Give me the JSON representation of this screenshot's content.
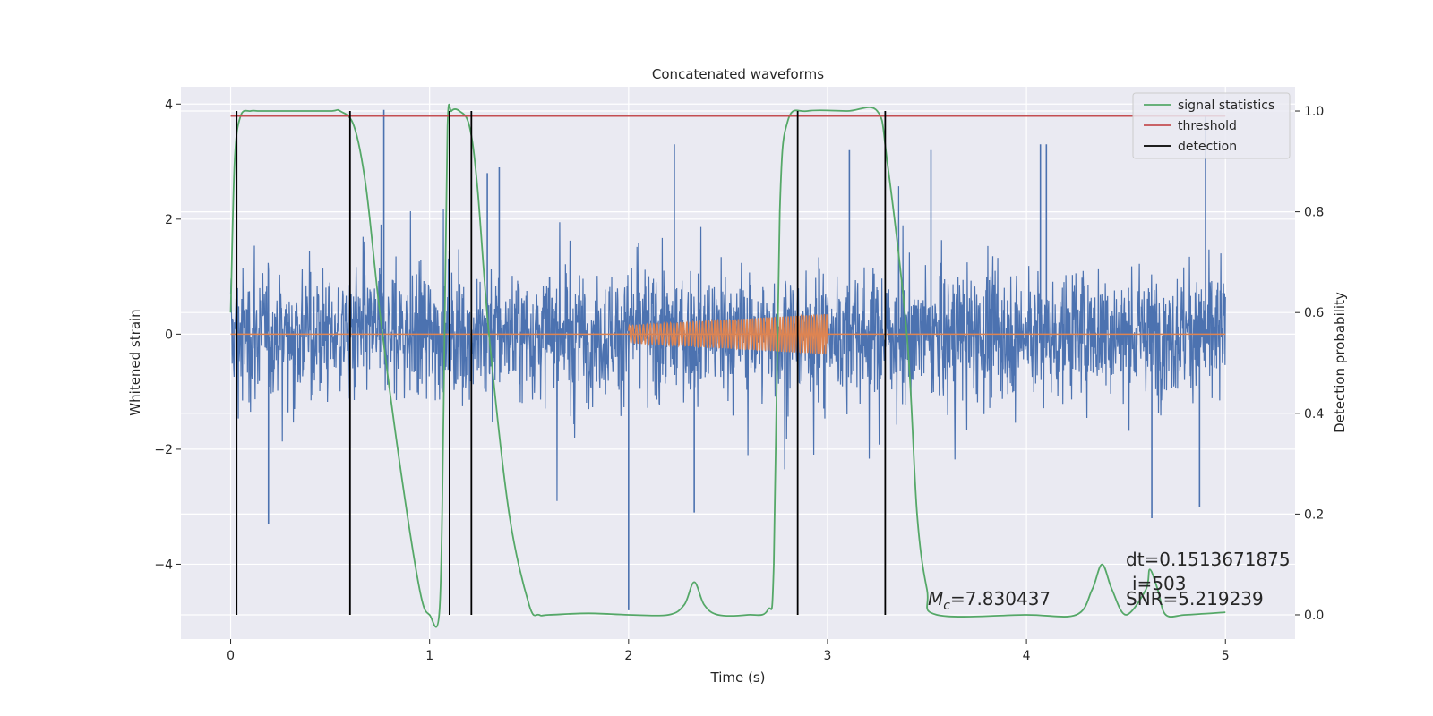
{
  "chart_data": {
    "type": "line",
    "title": "Concatenated waveforms",
    "xlabel": "Time (s)",
    "ylabel": "Whitened strain",
    "y2label": "Detection probability",
    "xlim": [
      -0.25,
      5.35
    ],
    "ylim": [
      -5.3,
      4.3
    ],
    "y2lim": [
      -0.048,
      1.048
    ],
    "x_ticks": [
      0,
      1,
      2,
      3,
      4,
      5
    ],
    "y_ticks": [
      -4,
      -2,
      0,
      2,
      4
    ],
    "y2_ticks": [
      0.0,
      0.2,
      0.4,
      0.6,
      0.8,
      1.0
    ],
    "grid": true,
    "legend_position": "top-right",
    "colors": {
      "strain": "#4c72b0",
      "template": "#dd8452",
      "signal_statistics": "#55a868",
      "threshold": "#c44e52",
      "detection": "#000000",
      "background": "#eaeaf2",
      "grid": "#ffffff"
    },
    "series": [
      {
        "name": "signal statistics",
        "axis": "right",
        "x": [
          0.0,
          0.02,
          0.05,
          0.1,
          0.15,
          0.3,
          0.5,
          0.55,
          0.62,
          0.68,
          0.75,
          0.85,
          0.95,
          1.0,
          1.05,
          1.07,
          1.09,
          1.11,
          1.15,
          1.2,
          1.24,
          1.3,
          1.4,
          1.5,
          1.55,
          1.6,
          1.8,
          2.0,
          2.2,
          2.28,
          2.33,
          2.38,
          2.45,
          2.6,
          2.7,
          2.73,
          2.76,
          2.8,
          2.9,
          3.1,
          3.25,
          3.3,
          3.4,
          3.45,
          3.5,
          3.55,
          4.0,
          4.25,
          4.33,
          4.38,
          4.43,
          4.5,
          4.6,
          4.62,
          4.66,
          4.7,
          4.8,
          5.0
        ],
        "y": [
          0.6,
          0.9,
          0.99,
          1.0,
          1.0,
          1.0,
          1.0,
          1.0,
          0.97,
          0.85,
          0.6,
          0.3,
          0.05,
          0.0,
          0.01,
          0.4,
          0.97,
          1.0,
          1.0,
          0.97,
          0.85,
          0.55,
          0.2,
          0.02,
          0.0,
          0.0,
          0.003,
          0.0,
          0.0,
          0.02,
          0.065,
          0.02,
          0.0,
          0.0,
          0.01,
          0.1,
          0.8,
          0.98,
          1.0,
          1.0,
          1.0,
          0.9,
          0.55,
          0.2,
          0.05,
          0.0,
          0.0,
          0.0,
          0.05,
          0.1,
          0.05,
          0.0,
          0.05,
          0.09,
          0.05,
          0.0,
          0.0,
          0.005
        ]
      },
      {
        "name": "threshold",
        "axis": "right",
        "x": [
          0.0,
          5.0
        ],
        "y": [
          0.99,
          0.99
        ]
      },
      {
        "name": "detection",
        "axis": "right",
        "x": [
          0.03,
          0.6,
          1.1,
          1.21,
          2.85,
          3.29
        ],
        "y_range": [
          0.0,
          1.0
        ]
      },
      {
        "name": "",
        "axis": "left",
        "kind": "whitened-noise",
        "x_range": [
          0.0,
          5.0
        ],
        "typical_amplitude": [
          -1.5,
          1.5
        ],
        "spikes": [
          [
            0.77,
            3.9
          ],
          [
            0.19,
            -3.3
          ],
          [
            2.0,
            -4.8
          ],
          [
            2.33,
            -3.1
          ],
          [
            4.63,
            -3.2
          ],
          [
            4.87,
            -3.0
          ],
          [
            4.9,
            3.8
          ],
          [
            1.29,
            2.8
          ],
          [
            1.35,
            2.9
          ],
          [
            3.11,
            3.2
          ],
          [
            2.23,
            3.3
          ],
          [
            3.52,
            3.2
          ],
          [
            4.07,
            3.3
          ],
          [
            4.1,
            3.3
          ]
        ]
      },
      {
        "name": "",
        "axis": "left",
        "kind": "chirp-template",
        "x_range": [
          2.0,
          3.0
        ],
        "amplitude_range": [
          0.15,
          0.35
        ]
      }
    ],
    "annotations": {
      "mc_symbol": "M",
      "mc_sub": "c",
      "mc_value": "=7.830437",
      "dt": "dt=0.1513671875",
      "i": "i=503",
      "snr": "SNR=5.219239"
    }
  }
}
